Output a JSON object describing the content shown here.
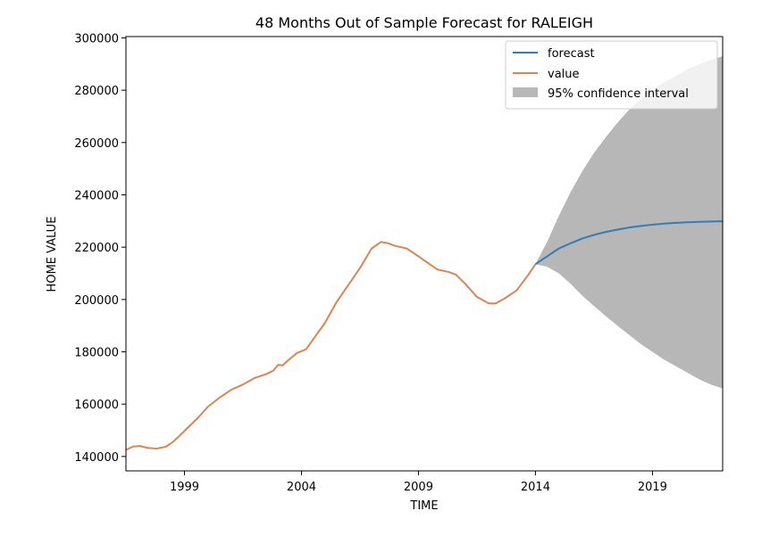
{
  "chart_data": {
    "type": "line",
    "title": "48 Months Out of Sample Forecast for RALEIGH",
    "xlabel": "TIME",
    "ylabel": "HOME VALUE",
    "xlim": [
      1996.5,
      2022.0
    ],
    "ylim": [
      134500,
      300500
    ],
    "x_ticks": [
      1999,
      2004,
      2009,
      2014,
      2019
    ],
    "y_ticks": [
      140000,
      160000,
      180000,
      200000,
      220000,
      240000,
      260000,
      280000,
      300000
    ],
    "grid": false,
    "legend_position": "top-right",
    "colors": {
      "value": "#dd8452",
      "forecast": "#2f7dba",
      "confidence": "#9f9f9f"
    },
    "series": [
      {
        "name": "value",
        "x": [
          1996.5,
          1996.8,
          1997.1,
          1997.4,
          1997.8,
          1998.2,
          1998.5,
          1998.8,
          1999.2,
          1999.6,
          2000.0,
          2000.5,
          2001.0,
          2001.5,
          2002.0,
          2002.5,
          2002.8,
          2003.0,
          2003.2,
          2003.4,
          2003.8,
          2004.2,
          2004.6,
          2005.0,
          2005.5,
          2006.0,
          2006.5,
          2007.0,
          2007.4,
          2007.7,
          2008.0,
          2008.5,
          2009.0,
          2009.4,
          2009.8,
          2010.3,
          2010.6,
          2011.0,
          2011.5,
          2012.0,
          2012.3,
          2012.7,
          2013.2,
          2013.7,
          2014.0
        ],
        "values": [
          142500,
          143800,
          144000,
          143300,
          143000,
          143700,
          145500,
          148000,
          151500,
          155000,
          159000,
          162500,
          165500,
          167500,
          170000,
          171500,
          172800,
          175000,
          174800,
          176500,
          179500,
          181000,
          186000,
          191000,
          199000,
          205500,
          212000,
          219500,
          222000,
          221500,
          220500,
          219500,
          216500,
          214000,
          211500,
          210500,
          209500,
          206000,
          201000,
          198500,
          198500,
          200500,
          203500,
          209500,
          213500
        ]
      },
      {
        "name": "forecast",
        "x": [
          2014.0,
          2014.5,
          2015.0,
          2015.5,
          2016.0,
          2016.5,
          2017.0,
          2017.5,
          2018.0,
          2018.5,
          2019.0,
          2019.5,
          2020.0,
          2020.5,
          2021.0,
          2021.5,
          2022.0
        ],
        "values": [
          213500,
          216500,
          219500,
          221500,
          223300,
          224700,
          225800,
          226700,
          227500,
          228100,
          228600,
          229000,
          229300,
          229500,
          229700,
          229800,
          229900
        ]
      }
    ],
    "confidence_interval": {
      "name": "95% confidence interval",
      "x": [
        2014.0,
        2014.5,
        2015.0,
        2015.5,
        2016.0,
        2016.5,
        2017.0,
        2017.5,
        2018.0,
        2018.5,
        2019.0,
        2019.5,
        2020.0,
        2020.5,
        2021.0,
        2021.5,
        2022.0
      ],
      "lower": [
        213500,
        212500,
        210000,
        206000,
        201500,
        197500,
        193700,
        190000,
        186500,
        183000,
        180000,
        177000,
        174500,
        172000,
        169500,
        167500,
        166000
      ],
      "upper": [
        213500,
        222000,
        232000,
        241000,
        249000,
        256000,
        262000,
        267500,
        272500,
        276500,
        280000,
        283000,
        285500,
        288000,
        290000,
        291500,
        293000
      ]
    }
  }
}
